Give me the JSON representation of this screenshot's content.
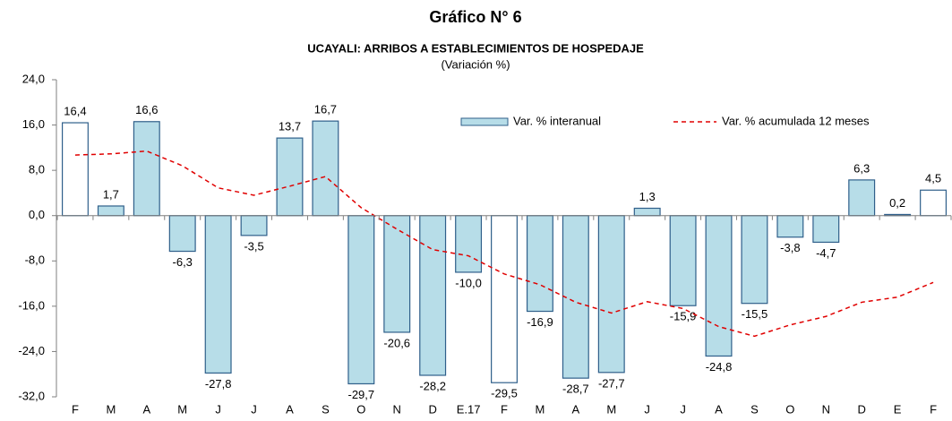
{
  "chart_data": {
    "type": "bar",
    "title": "Gráfico N° 6",
    "subtitle": "UCAYALI: ARRIBOS A ESTABLECIMIENTOS DE HOSPEDAJE",
    "unit_note": "(Variación %)",
    "categories": [
      "F",
      "M",
      "A",
      "M",
      "J",
      "J",
      "A",
      "S",
      "O",
      "N",
      "D",
      "E.17",
      "F",
      "M",
      "A",
      "M",
      "J",
      "J",
      "A",
      "S",
      "O",
      "N",
      "D",
      "E",
      "F"
    ],
    "ylim": [
      -32,
      24
    ],
    "yticks": [
      {
        "value": -32,
        "label": "-32,0"
      },
      {
        "value": -24,
        "label": "-24,0"
      },
      {
        "value": -16,
        "label": "-16,0"
      },
      {
        "value": -8,
        "label": "-8,0"
      },
      {
        "value": 0,
        "label": "0,0"
      },
      {
        "value": 8,
        "label": "8,0"
      },
      {
        "value": 16,
        "label": "16,0"
      },
      {
        "value": 24,
        "label": "24,0"
      }
    ],
    "series": [
      {
        "name": "Var. % interanual",
        "type": "bar",
        "color": "#b7dde8",
        "edge_color": "#2f5f8a",
        "colors": [
          "#ffffff",
          "#b7dde8",
          "#b7dde8",
          "#b7dde8",
          "#b7dde8",
          "#b7dde8",
          "#b7dde8",
          "#b7dde8",
          "#b7dde8",
          "#b7dde8",
          "#b7dde8",
          "#b7dde8",
          "#ffffff",
          "#b7dde8",
          "#b7dde8",
          "#b7dde8",
          "#b7dde8",
          "#b7dde8",
          "#b7dde8",
          "#b7dde8",
          "#b7dde8",
          "#b7dde8",
          "#b7dde8",
          "#b7dde8",
          "#ffffff"
        ],
        "values": [
          16.4,
          1.7,
          16.6,
          -6.3,
          -27.8,
          -3.5,
          13.7,
          16.7,
          -29.7,
          -20.6,
          -28.2,
          -10.0,
          -29.5,
          -16.9,
          -28.7,
          -27.7,
          1.3,
          -15.9,
          -24.8,
          -15.5,
          -3.8,
          -4.7,
          6.3,
          0.2,
          4.5
        ],
        "value_labels": [
          "16,4",
          "1,7",
          "16,6",
          "-6,3",
          "-27,8",
          "-3,5",
          "13,7",
          "16,7",
          "-29,7",
          "-20,6",
          "-28,2",
          "-10,0",
          "-29,5",
          "-16,9",
          "-28,7",
          "-27,7",
          "1,3",
          "-15,9",
          "-24,8",
          "-15,5",
          "-3,8",
          "-4,7",
          "6,3",
          "0,2",
          "4,5"
        ]
      },
      {
        "name": "Var. % acumulada 12 meses",
        "type": "line",
        "color": "#e00000",
        "dashed": true,
        "values": [
          10.7,
          10.9,
          11.4,
          8.8,
          4.9,
          3.6,
          5.2,
          6.9,
          1.4,
          -2.4,
          -6.0,
          -7.1,
          -10.3,
          -12.2,
          -15.3,
          -17.2,
          -15.2,
          -16.4,
          -19.6,
          -21.3,
          -19.3,
          -17.8,
          -15.3,
          -14.4,
          -11.8
        ]
      }
    ]
  }
}
